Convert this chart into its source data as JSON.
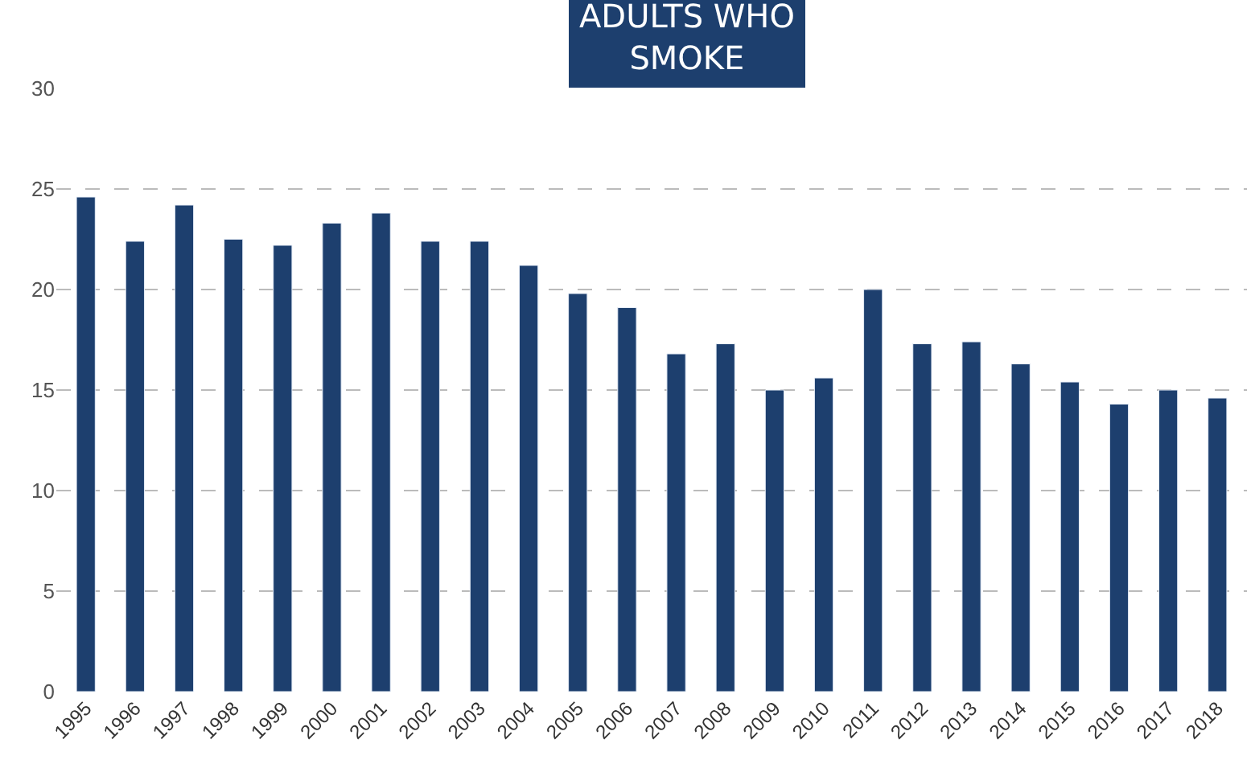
{
  "chart_data": {
    "type": "bar",
    "title": "ADULTS WHO\nSMOKE",
    "categories": [
      "1995",
      "1996",
      "1997",
      "1998",
      "1999",
      "2000",
      "2001",
      "2002",
      "2003",
      "2004",
      "2005",
      "2006",
      "2007",
      "2008",
      "2009",
      "2010",
      "2011",
      "2012",
      "2013",
      "2014",
      "2015",
      "2016",
      "2017",
      "2018"
    ],
    "values": [
      24.6,
      22.4,
      24.2,
      22.5,
      22.2,
      23.3,
      23.8,
      22.4,
      22.4,
      21.2,
      19.8,
      19.1,
      16.8,
      17.3,
      15.0,
      15.6,
      20.0,
      17.3,
      17.4,
      16.3,
      15.4,
      14.3,
      15.0,
      14.6
    ],
    "color": "#1d3f6e",
    "ylim": [
      0,
      30
    ],
    "yticks": [
      0,
      5,
      10,
      15,
      20,
      25,
      30
    ],
    "grid": "y",
    "legend": false
  }
}
